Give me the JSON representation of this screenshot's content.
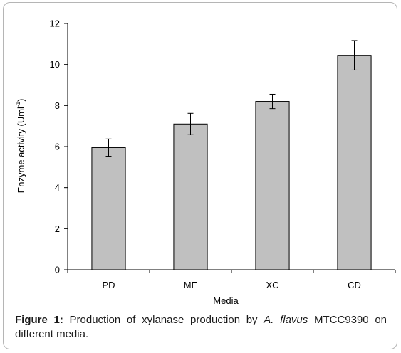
{
  "chart_data": {
    "type": "bar",
    "categories": [
      "PD",
      "ME",
      "XC",
      "CD"
    ],
    "values": [
      5.95,
      7.1,
      8.2,
      10.45
    ],
    "errors": [
      0.42,
      0.52,
      0.35,
      0.72
    ],
    "xlabel": "Media",
    "ylabel_main": "Enzyme activity (Uml",
    "ylabel_sup": "-1",
    "ylabel_close": ")",
    "ylim": [
      0,
      12
    ],
    "yticks": [
      "0",
      "2",
      "4",
      "6",
      "8",
      "10",
      "12"
    ],
    "grid": false,
    "bar_color": "#c0c0c0",
    "bar_edge_color": "#000000"
  },
  "caption": {
    "label": "Figure 1:",
    "text_1": " Production of xylanase production by ",
    "organism": "A. flavus",
    "text_2": " MTCC9390 on different media."
  }
}
